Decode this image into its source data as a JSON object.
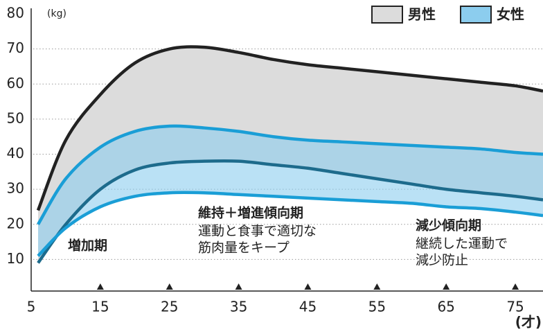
{
  "chart_data": {
    "type": "range-area",
    "y_unit": "(kg)",
    "x_unit": "(才)",
    "x": [
      6,
      10,
      15,
      20,
      25,
      30,
      35,
      40,
      45,
      50,
      55,
      60,
      65,
      70,
      75,
      79
    ],
    "series": [
      {
        "name": "男性",
        "color": "#dcdcdc",
        "high_line_color": "#222222",
        "low_line_color": "#1d6b8c",
        "high": [
          24,
          44,
          57,
          66,
          70,
          70.5,
          69,
          67,
          65.5,
          64.5,
          63.5,
          62.5,
          61.5,
          60.5,
          59.5,
          58
        ],
        "low": [
          9,
          20,
          30,
          35.5,
          37.5,
          38,
          38,
          37,
          36,
          34.5,
          33,
          31.5,
          30,
          29,
          28,
          27
        ]
      },
      {
        "name": "女性",
        "color": "#8ccdee",
        "high_line_color": "#1a9ed6",
        "low_line_color": "#1a9ed6",
        "high": [
          20,
          33,
          42,
          46.5,
          48,
          47.5,
          46.5,
          45,
          44,
          43.5,
          43,
          42.5,
          42,
          41.5,
          40.5,
          40
        ],
        "low": [
          11,
          19,
          25,
          28,
          29,
          29,
          28.5,
          28,
          27.5,
          27,
          26.5,
          26,
          25,
          24.5,
          23.5,
          22.5
        ]
      }
    ],
    "xlim": [
      5,
      79
    ],
    "ylim": [
      1,
      80
    ],
    "xticks": [
      5,
      15,
      25,
      35,
      45,
      55,
      65,
      75
    ],
    "yticks": [
      10,
      20,
      30,
      40,
      50,
      60,
      70,
      80
    ],
    "grid": true,
    "legend": "top-right",
    "annotations": [
      {
        "title": "増加期",
        "lines": []
      },
      {
        "title": "維持＋増進傾向期",
        "lines": [
          "運動と食事で適切な",
          "筋肉量をキープ"
        ]
      },
      {
        "title": "減少傾向期",
        "lines": [
          "継続した運動で",
          "減少防止"
        ]
      }
    ]
  }
}
